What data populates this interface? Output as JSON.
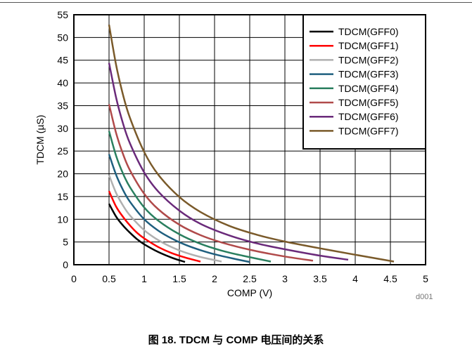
{
  "chart_data": {
    "type": "line",
    "xlabel": "COMP (V)",
    "ylabel": "TDCM (µS)",
    "xlim": [
      0,
      5
    ],
    "ylim": [
      0,
      55
    ],
    "xticks": [
      "0",
      "0.5",
      "1",
      "1.5",
      "2",
      "2.5",
      "3",
      "3.5",
      "4",
      "4.5",
      "5"
    ],
    "yticks": [
      "0",
      "5",
      "10",
      "15",
      "20",
      "25",
      "30",
      "35",
      "40",
      "45",
      "50",
      "55"
    ],
    "grid": true,
    "legend_position": "top-right",
    "series": [
      {
        "name": "TDCM(GFF0)",
        "color": "#000000",
        "x": [
          0.5,
          0.6,
          0.7,
          0.8,
          0.9,
          1.0,
          1.2,
          1.4,
          1.58
        ],
        "y": [
          13.4,
          10.6,
          8.6,
          7.0,
          5.6,
          4.5,
          2.8,
          1.5,
          0.6
        ]
      },
      {
        "name": "TDCM(GFF1)",
        "color": "#ff0000",
        "x": [
          0.5,
          0.6,
          0.7,
          0.8,
          0.9,
          1.0,
          1.2,
          1.4,
          1.6,
          1.8
        ],
        "y": [
          16.2,
          12.8,
          10.5,
          8.6,
          7.0,
          5.8,
          3.9,
          2.5,
          1.5,
          0.7
        ]
      },
      {
        "name": "TDCM(GFF2)",
        "color": "#b0b0b0",
        "x": [
          0.5,
          0.6,
          0.7,
          0.8,
          1.0,
          1.2,
          1.4,
          1.6,
          1.8,
          2.1
        ],
        "y": [
          19.7,
          15.8,
          13.0,
          10.8,
          7.6,
          5.4,
          3.8,
          2.6,
          1.7,
          0.7
        ]
      },
      {
        "name": "TDCM(GFF3)",
        "color": "#1f5f7f",
        "x": [
          0.5,
          0.6,
          0.7,
          0.8,
          1.0,
          1.2,
          1.4,
          1.6,
          1.8,
          2.0,
          2.25,
          2.5
        ],
        "y": [
          24.3,
          19.8,
          16.4,
          13.8,
          10.0,
          7.5,
          5.7,
          4.3,
          3.2,
          2.3,
          1.4,
          0.6
        ]
      },
      {
        "name": "TDCM(GFF4)",
        "color": "#2a7f5f",
        "x": [
          0.5,
          0.6,
          0.7,
          0.8,
          1.0,
          1.2,
          1.5,
          1.8,
          2.1,
          2.4,
          2.8
        ],
        "y": [
          29.4,
          24.0,
          20.0,
          17.0,
          12.6,
          9.7,
          6.7,
          4.6,
          3.1,
          2.0,
          0.7
        ]
      },
      {
        "name": "TDCM(GFF5)",
        "color": "#b04a4a",
        "x": [
          0.5,
          0.6,
          0.7,
          0.8,
          1.0,
          1.2,
          1.5,
          1.8,
          2.1,
          2.5,
          3.0,
          3.4
        ],
        "y": [
          35.3,
          29.0,
          24.3,
          20.7,
          15.6,
          12.2,
          8.8,
          6.5,
          4.9,
          3.3,
          1.8,
          0.9
        ]
      },
      {
        "name": "TDCM(GFF6)",
        "color": "#6a2a7a",
        "x": [
          0.5,
          0.6,
          0.7,
          0.8,
          1.0,
          1.2,
          1.5,
          1.8,
          2.2,
          2.6,
          3.0,
          3.5,
          3.9
        ],
        "y": [
          44.4,
          36.8,
          31.0,
          26.6,
          20.3,
          16.1,
          11.9,
          9.0,
          6.5,
          4.7,
          3.4,
          2.0,
          1.1
        ]
      },
      {
        "name": "TDCM(GFF7)",
        "color": "#7a5a2a",
        "x": [
          0.5,
          0.6,
          0.7,
          0.8,
          1.0,
          1.2,
          1.5,
          1.8,
          2.2,
          2.6,
          3.0,
          3.5,
          4.0,
          4.55
        ],
        "y": [
          52.8,
          44.0,
          37.3,
          32.2,
          24.8,
          19.8,
          14.9,
          11.6,
          8.6,
          6.6,
          5.1,
          3.6,
          2.2,
          0.7
        ]
      }
    ]
  },
  "figure": {
    "code": "d001",
    "caption": "图 18. TDCM 与 COMP 电压间的关系"
  }
}
